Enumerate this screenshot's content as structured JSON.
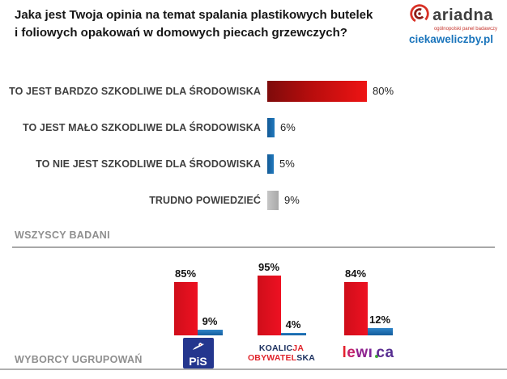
{
  "title": {
    "line1": "Jaka jest Twoja opinia na temat spalania plastikowych butelek",
    "line2": "i foliowych opakowań w domowych piecach grzewczych?"
  },
  "logo": {
    "brand": "ariadna",
    "tagline": "ogólnopolski panel badawczy",
    "site": "ciekaweliczby.pl",
    "brand_color": "#3d3d3d",
    "accent_color": "#d93025",
    "site_color": "#1b75bc"
  },
  "sections": {
    "all_label": "WSZYSCY BADANI",
    "voters_label": "WYBORCY UGRUPOWAŃ"
  },
  "chart_data": [
    {
      "type": "bar",
      "orientation": "horizontal",
      "section": "WSZYSCY BADANI",
      "categories": [
        "TO JEST BARDZO SZKODLIWE DLA ŚRODOWISKA",
        "TO JEST MAŁO SZKODLIWE DLA ŚRODOWISKA",
        "TO NIE JEST SZKODLIWE DLA ŚRODOWISKA",
        "TRUDNO POWIEDZIEĆ"
      ],
      "values": [
        80,
        6,
        5,
        9
      ],
      "value_labels": [
        "80%",
        "6%",
        "5%",
        "9%"
      ],
      "colors": [
        "red",
        "blue",
        "blue",
        "gray"
      ],
      "xlim": [
        0,
        100
      ],
      "grid": false,
      "legend": false
    },
    {
      "type": "bar",
      "orientation": "vertical",
      "section": "WYBORCY UGRUPOWAŃ",
      "categories": [
        "PiS",
        "Koalicja Obywatelska",
        "Lewica"
      ],
      "series": [
        {
          "name": "red",
          "color": "#e01020",
          "values": [
            85,
            95,
            84
          ],
          "value_labels": [
            "85%",
            "95%",
            "84%"
          ]
        },
        {
          "name": "blue",
          "color": "#1b6db3",
          "values": [
            9,
            4,
            12
          ],
          "value_labels": [
            "9%",
            "4%",
            "12%"
          ]
        }
      ],
      "ylim": [
        0,
        100
      ],
      "grid": false,
      "legend": false
    }
  ],
  "party_logos": {
    "pis": {
      "text": "PiS",
      "bg": "#24368e",
      "fg": "#ffffff"
    },
    "ko": {
      "line1": [
        {
          "t": "KOALIC",
          "c": "#1b2f5e"
        },
        {
          "t": "JA",
          "c": "#e0252c"
        }
      ],
      "line2": [
        {
          "t": "OBYWATEL",
          "c": "#e0252c"
        },
        {
          "t": "SKA",
          "c": "#1b2f5e"
        }
      ]
    },
    "lewica": {
      "letters": [
        {
          "t": "l",
          "c": "#e4212e"
        },
        {
          "t": "e",
          "c": "#c4226b"
        },
        {
          "t": "w",
          "c": "#8f2390"
        },
        {
          "t": "i",
          "c": "#7b2496",
          "dot": "#3faa35"
        },
        {
          "t": "c",
          "c": "#5f2d91"
        },
        {
          "t": "a",
          "c": "#562e91"
        }
      ]
    }
  }
}
